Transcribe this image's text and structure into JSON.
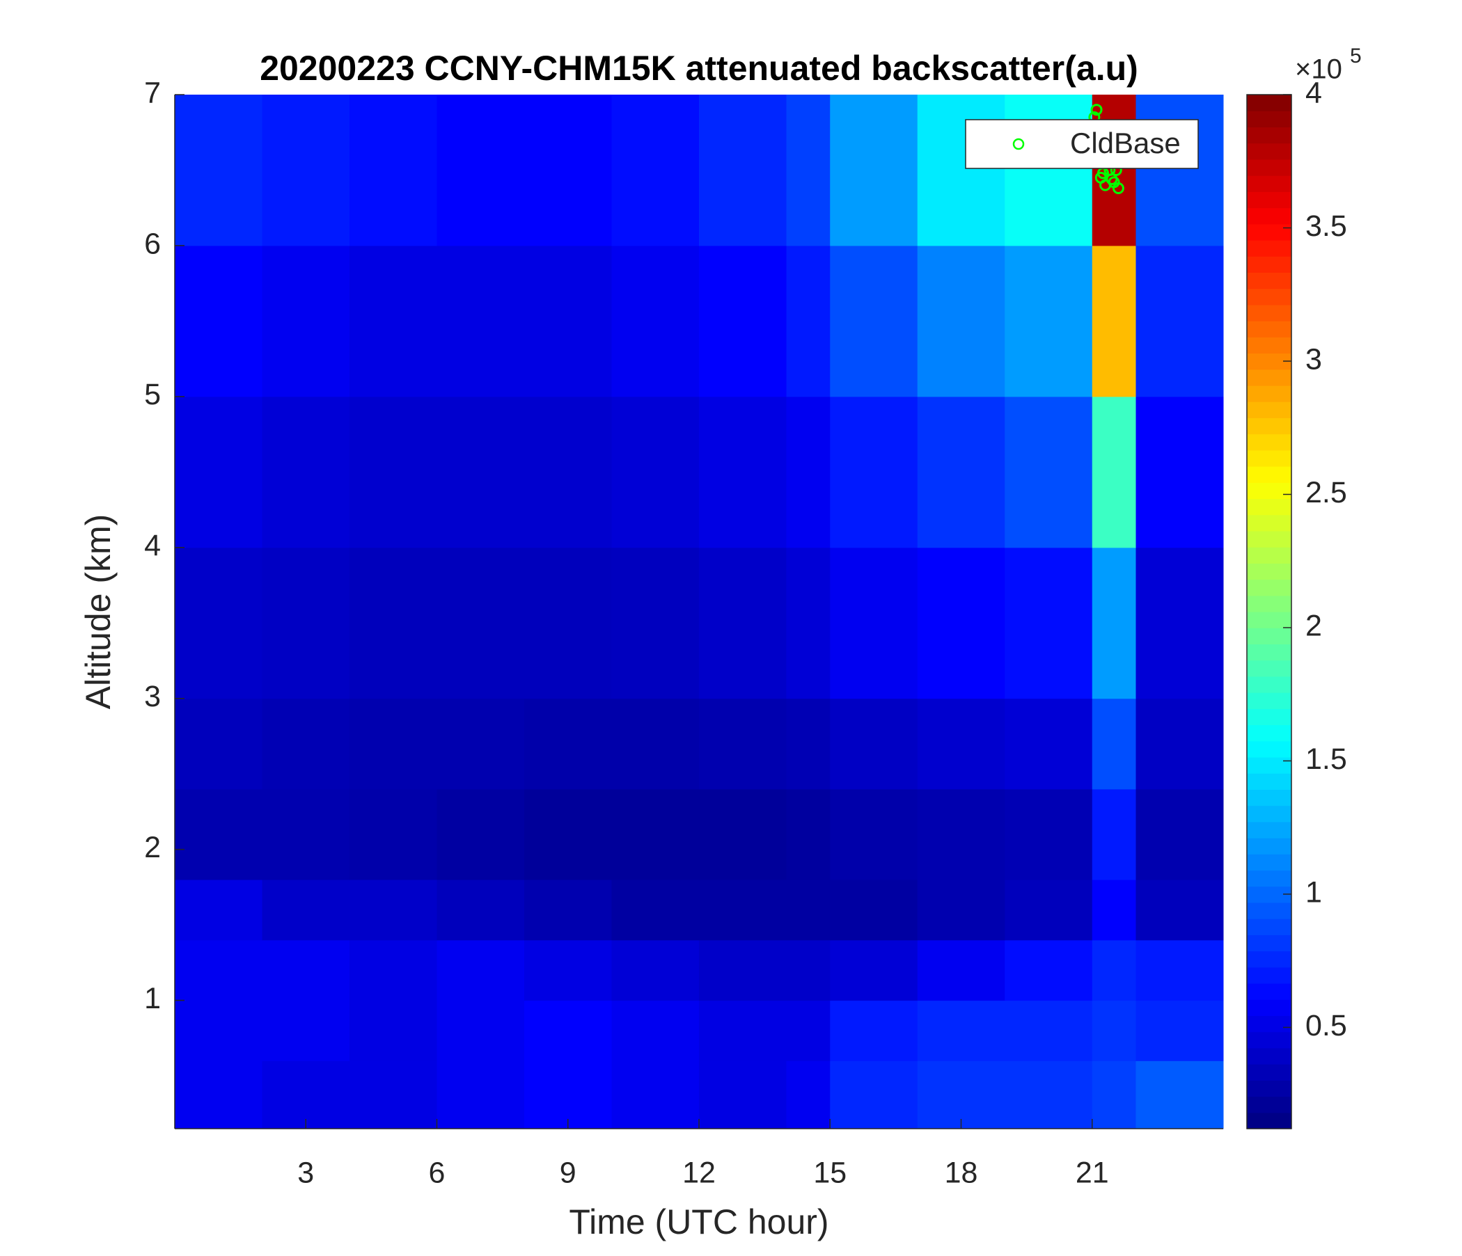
{
  "chart_data": {
    "type": "heatmap",
    "title": "20200223 CCNY-CHM15K attenuated backscatter(a.u)",
    "xlabel": "Time (UTC hour)",
    "ylabel": "Altitude (km)",
    "xlim": [
      0,
      24
    ],
    "xticks": [
      3,
      6,
      9,
      12,
      15,
      18,
      21
    ],
    "ylim": [
      0.15,
      7
    ],
    "yticks": [
      1,
      2,
      3,
      4,
      5,
      6,
      7
    ],
    "x_edges": [
      0,
      2,
      4,
      6,
      8,
      10,
      12,
      14,
      15,
      17,
      19,
      21,
      22,
      24
    ],
    "y_edges": [
      0.15,
      0.6,
      1.0,
      1.4,
      1.8,
      2.4,
      3,
      4,
      5,
      6,
      7
    ],
    "z": [
      [
        0.55,
        0.5,
        0.5,
        0.55,
        0.6,
        0.55,
        0.5,
        0.55,
        0.75,
        0.8,
        0.8,
        0.85,
        0.95
      ],
      [
        0.55,
        0.55,
        0.5,
        0.55,
        0.6,
        0.55,
        0.5,
        0.5,
        0.7,
        0.75,
        0.75,
        0.8,
        0.75
      ],
      [
        0.55,
        0.55,
        0.5,
        0.55,
        0.5,
        0.45,
        0.4,
        0.4,
        0.45,
        0.55,
        0.65,
        0.75,
        0.7
      ],
      [
        0.5,
        0.4,
        0.4,
        0.35,
        0.3,
        0.25,
        0.25,
        0.25,
        0.25,
        0.3,
        0.35,
        0.6,
        0.35
      ],
      [
        0.3,
        0.3,
        0.28,
        0.25,
        0.22,
        0.22,
        0.22,
        0.24,
        0.28,
        0.3,
        0.32,
        0.7,
        0.3
      ],
      [
        0.35,
        0.32,
        0.3,
        0.3,
        0.28,
        0.28,
        0.3,
        0.32,
        0.38,
        0.42,
        0.45,
        0.9,
        0.38
      ],
      [
        0.4,
        0.38,
        0.35,
        0.35,
        0.35,
        0.36,
        0.4,
        0.45,
        0.55,
        0.6,
        0.65,
        1.2,
        0.45
      ],
      [
        0.5,
        0.45,
        0.42,
        0.42,
        0.42,
        0.45,
        0.5,
        0.55,
        0.7,
        0.8,
        0.9,
        1.8,
        0.6
      ],
      [
        0.6,
        0.55,
        0.5,
        0.5,
        0.5,
        0.55,
        0.6,
        0.7,
        0.9,
        1.1,
        1.2,
        2.8,
        0.75
      ],
      [
        0.75,
        0.7,
        0.65,
        0.6,
        0.6,
        0.65,
        0.75,
        0.85,
        1.2,
        1.5,
        1.6,
        3.8,
        0.9
      ]
    ],
    "colormap": "jet",
    "clim": [
      0.12,
      4
    ],
    "colorbar_ticks": [
      0.5,
      1,
      1.5,
      2,
      2.5,
      3,
      3.5,
      4
    ],
    "colorbar_multiplier": "×10",
    "colorbar_exponent": 5,
    "series": [
      {
        "name": "CldBase",
        "type": "scatter",
        "color": "#00ff00",
        "x": [
          21.1,
          21.2,
          21.3,
          21.4,
          21.5,
          21.6,
          21.15,
          21.25,
          21.35,
          21.45,
          21.55,
          21.05
        ],
        "y": [
          6.9,
          6.45,
          6.4,
          6.5,
          6.42,
          6.38,
          6.55,
          6.48,
          6.6,
          6.44,
          6.5,
          6.85
        ]
      }
    ],
    "legend": "upper right"
  }
}
